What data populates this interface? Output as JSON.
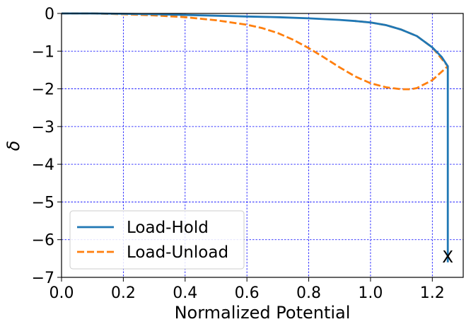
{
  "chart_data": {
    "type": "line",
    "title": "",
    "xlabel": "Normalized Potential",
    "ylabel": "δ",
    "xlim": [
      0.0,
      1.3
    ],
    "ylim": [
      -7,
      0
    ],
    "xticks": [
      "0.0",
      "0.2",
      "0.4",
      "0.6",
      "0.8",
      "1.0",
      "1.2"
    ],
    "yticks": [
      "0",
      "−1",
      "−2",
      "−3",
      "−4",
      "−5",
      "−6",
      "−7"
    ],
    "grid": true,
    "grid_color": "#0000ff",
    "legend_position": "lower-left",
    "annotations": [
      {
        "text": "X",
        "x": 1.25,
        "y": -6.4
      }
    ],
    "series": [
      {
        "name": "Load-Hold",
        "color": "#1f77b4",
        "style": "solid",
        "x": [
          0.0,
          0.1,
          0.2,
          0.3,
          0.4,
          0.5,
          0.6,
          0.7,
          0.8,
          0.9,
          0.95,
          1.0,
          1.05,
          1.1,
          1.15,
          1.2,
          1.23,
          1.25,
          1.25
        ],
        "y": [
          0.0,
          0.0,
          -0.01,
          -0.02,
          -0.04,
          -0.06,
          -0.08,
          -0.1,
          -0.13,
          -0.17,
          -0.2,
          -0.24,
          -0.31,
          -0.43,
          -0.6,
          -0.9,
          -1.15,
          -1.4,
          -6.6
        ]
      },
      {
        "name": "Load-Unload",
        "color": "#ff7f0e",
        "style": "dashed",
        "x": [
          0.0,
          0.1,
          0.2,
          0.3,
          0.4,
          0.5,
          0.6,
          0.65,
          0.7,
          0.75,
          0.8,
          0.85,
          0.9,
          0.95,
          1.0,
          1.05,
          1.1,
          1.13,
          1.15,
          1.2,
          1.25,
          1.2,
          1.15,
          1.1,
          1.05,
          1.0,
          0.95
        ],
        "y": [
          0.0,
          0.0,
          -0.02,
          -0.05,
          -0.1,
          -0.18,
          -0.3,
          -0.39,
          -0.52,
          -0.7,
          -0.92,
          -1.17,
          -1.43,
          -1.67,
          -1.85,
          -1.96,
          -2.01,
          -2.01,
          -1.98,
          -1.77,
          -1.4,
          -0.9,
          -0.6,
          -0.43,
          -0.31,
          -0.24,
          -0.2
        ]
      }
    ]
  }
}
